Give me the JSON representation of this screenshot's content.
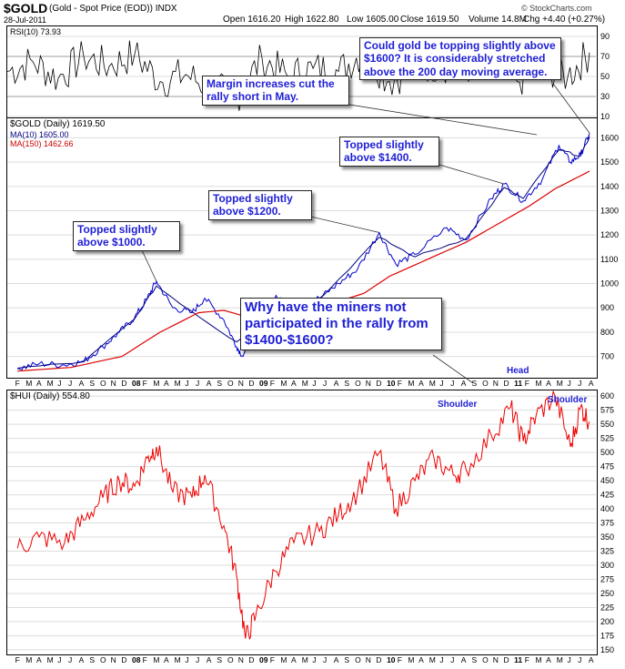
{
  "header": {
    "symbol": "$GOLD",
    "description": "(Gold - Spot Price (EOD)) INDX",
    "date": "28-Jul-2011",
    "open": "Open 1616.20",
    "high": "High 1622.80",
    "low": "Low 1605.00",
    "close": "Close 1619.50",
    "volume": "Volume 14.8M",
    "change": "Chg +4.40 (+0.27%)",
    "watermark": "© StockCharts.com"
  },
  "colors": {
    "price_line": "#0000cc",
    "price_red": "#dd0000",
    "ma10": "#000080",
    "ma150": "#dd0000",
    "rsi_line": "#000000",
    "rsi_fill_overbought": "#e06060",
    "grid": "#dddddd",
    "callout_text": "#1f1fd6",
    "hui_line": "#ee0000"
  },
  "legend": {
    "gold": "$GOLD (Daily) 1619.50",
    "ma10": "MA(10) 1605.00",
    "ma150": "MA(150) 1462.66",
    "rsi": "RSI(10) 73.93",
    "hui": "$HUI (Daily) 554.80"
  },
  "annotations": {
    "topping": "Could gold be topping slightly above $1600? It is considerably stretched above the 200 day moving average.",
    "margin": "Margin increases cut the rally short in May.",
    "top1400": "Topped slightly above $1400.",
    "top1200": "Topped slightly above $1200.",
    "top1000": "Topped slightly above $1000.",
    "miners": "Why have the miners not participated in the rally from $1400-$1600?",
    "head": "Head",
    "shoulder_left": "Shoulder",
    "shoulder_right": "Shoulder"
  },
  "chart_data": [
    {
      "type": "line",
      "panel": "rsi",
      "title": "RSI(10) 73.93",
      "ylim": [
        10,
        100
      ],
      "ticks": [
        10,
        30,
        50,
        70,
        90
      ],
      "reference_lines": [
        30,
        70
      ],
      "series": [
        {
          "name": "RSI(10)",
          "x": [
            2007.0,
            2007.2,
            2007.4,
            2007.6,
            2007.8,
            2008.0,
            2008.2,
            2008.4,
            2008.6,
            2008.8,
            2009.0,
            2009.2,
            2009.4,
            2009.6,
            2009.8,
            2010.0,
            2010.2,
            2010.4,
            2010.6,
            2010.8,
            2011.0,
            2011.2,
            2011.4,
            2011.57
          ],
          "values": [
            55,
            65,
            48,
            70,
            60,
            72,
            45,
            52,
            38,
            30,
            68,
            50,
            58,
            55,
            75,
            45,
            60,
            62,
            58,
            70,
            45,
            60,
            50,
            73.93
          ]
        }
      ]
    },
    {
      "type": "line",
      "panel": "gold",
      "title": "$GOLD (Daily) 1619.50",
      "ylim": [
        620,
        1680
      ],
      "ticks": [
        700,
        800,
        900,
        1000,
        1100,
        1200,
        1300,
        1400,
        1500,
        1600
      ],
      "x_ticks": [
        "F",
        "M",
        "A",
        "M",
        "J",
        "J",
        "A",
        "S",
        "O",
        "N",
        "D",
        "08",
        "F",
        "M",
        "A",
        "M",
        "J",
        "J",
        "A",
        "S",
        "O",
        "N",
        "D",
        "09",
        "F",
        "M",
        "A",
        "M",
        "J",
        "J",
        "A",
        "S",
        "O",
        "N",
        "D",
        "10",
        "F",
        "M",
        "A",
        "M",
        "J",
        "J",
        "A",
        "S",
        "O",
        "N",
        "D",
        "11",
        "F",
        "M",
        "A",
        "M",
        "J",
        "J",
        "A"
      ],
      "series": [
        {
          "name": "$GOLD",
          "x": [
            2007.08,
            2007.25,
            2007.45,
            2007.6,
            2007.75,
            2007.88,
            2008.0,
            2008.1,
            2008.17,
            2008.3,
            2008.45,
            2008.55,
            2008.7,
            2008.8,
            2008.85,
            2009.0,
            2009.1,
            2009.2,
            2009.3,
            2009.45,
            2009.6,
            2009.75,
            2009.92,
            2010.05,
            2010.2,
            2010.45,
            2010.6,
            2010.8,
            2010.9,
            2011.05,
            2011.2,
            2011.33,
            2011.42,
            2011.5,
            2011.57
          ],
          "values": [
            650,
            670,
            665,
            680,
            740,
            800,
            860,
            940,
            1010,
            900,
            880,
            940,
            850,
            740,
            700,
            860,
            940,
            930,
            920,
            940,
            1000,
            1060,
            1210,
            1080,
            1120,
            1230,
            1180,
            1350,
            1410,
            1340,
            1430,
            1570,
            1500,
            1530,
            1619.5
          ]
        },
        {
          "name": "MA(10)",
          "x": [
            2007.08,
            2007.6,
            2008.0,
            2008.17,
            2008.45,
            2008.8,
            2009.0,
            2009.45,
            2009.92,
            2010.2,
            2010.6,
            2010.9,
            2011.05,
            2011.33,
            2011.5,
            2011.57
          ],
          "values": [
            652,
            678,
            855,
            990,
            885,
            760,
            850,
            935,
            1190,
            1110,
            1185,
            1395,
            1350,
            1550,
            1525,
            1605
          ]
        },
        {
          "name": "MA(150)",
          "x": [
            2007.08,
            2007.5,
            2007.9,
            2008.2,
            2008.5,
            2008.7,
            2008.9,
            2009.2,
            2009.5,
            2009.8,
            2010.0,
            2010.3,
            2010.6,
            2010.9,
            2011.1,
            2011.3,
            2011.57
          ],
          "values": [
            640,
            655,
            700,
            800,
            880,
            890,
            860,
            870,
            910,
            960,
            1030,
            1100,
            1170,
            1260,
            1320,
            1390,
            1462.66
          ]
        }
      ]
    },
    {
      "type": "line",
      "panel": "hui",
      "title": "$HUI (Daily) 554.80",
      "ylim": [
        145,
        610
      ],
      "ticks": [
        150,
        175,
        200,
        225,
        250,
        275,
        300,
        325,
        350,
        375,
        400,
        425,
        450,
        475,
        500,
        525,
        550,
        575,
        600
      ],
      "series": [
        {
          "name": "$HUI",
          "x": [
            2007.08,
            2007.25,
            2007.45,
            2007.6,
            2007.75,
            2007.88,
            2008.0,
            2008.1,
            2008.17,
            2008.3,
            2008.45,
            2008.55,
            2008.7,
            2008.8,
            2008.87,
            2008.95,
            2009.1,
            2009.25,
            2009.45,
            2009.6,
            2009.75,
            2009.92,
            2010.05,
            2010.2,
            2010.35,
            2010.5,
            2010.6,
            2010.8,
            2010.95,
            2011.05,
            2011.15,
            2011.3,
            2011.42,
            2011.5,
            2011.57
          ],
          "values": [
            330,
            350,
            340,
            380,
            420,
            450,
            440,
            490,
            510,
            430,
            420,
            460,
            370,
            280,
            170,
            210,
            290,
            340,
            360,
            390,
            430,
            500,
            400,
            450,
            490,
            460,
            470,
            530,
            580,
            520,
            565,
            600,
            510,
            580,
            554.8
          ]
        }
      ]
    }
  ]
}
